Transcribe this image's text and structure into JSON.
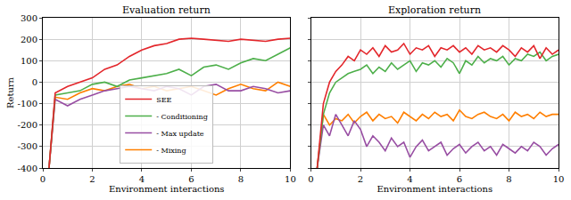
{
  "chart_data": [
    {
      "type": "line",
      "title": "Evaluation return",
      "x_label": "Environment interactions",
      "y_label": "Return",
      "x": [
        0.25,
        0.5,
        1,
        1.5,
        2,
        2.5,
        3,
        3.5,
        4,
        4.5,
        5,
        5.5,
        6,
        6.5,
        7,
        7.5,
        8,
        8.5,
        9,
        9.5,
        10
      ],
      "series": [
        {
          "name": "SEE",
          "color": "#e3262b",
          "values": [
            -400,
            -50,
            -20,
            0,
            20,
            60,
            80,
            120,
            150,
            170,
            180,
            200,
            205,
            200,
            195,
            190,
            200,
            195,
            190,
            200,
            205
          ]
        },
        {
          "name": "- Conditioning",
          "color": "#4daf4a",
          "values": [
            -400,
            -60,
            -50,
            -40,
            -10,
            0,
            -20,
            10,
            20,
            30,
            40,
            60,
            30,
            70,
            80,
            60,
            90,
            110,
            100,
            130,
            160
          ]
        },
        {
          "name": "- Max update",
          "color": "#984ea3",
          "values": [
            -400,
            -80,
            -110,
            -80,
            -60,
            -40,
            -30,
            -20,
            -30,
            -40,
            -20,
            -30,
            -60,
            -20,
            -10,
            -40,
            -40,
            -20,
            -30,
            -50,
            -40
          ]
        },
        {
          "name": "- Mixing",
          "color": "#ff7f00",
          "values": [
            -400,
            -70,
            -80,
            -50,
            -30,
            -40,
            -20,
            -10,
            -30,
            -20,
            -40,
            -30,
            -20,
            -40,
            -60,
            -30,
            -10,
            -30,
            -40,
            0,
            -20
          ]
        }
      ],
      "xlim": [
        0,
        10
      ],
      "xticks": [
        0,
        2,
        4,
        6,
        8,
        10
      ],
      "ylim": [
        -400,
        300
      ],
      "yticks": [
        -400,
        -300,
        -200,
        -100,
        0,
        100,
        200,
        300
      ],
      "grid": true,
      "legend": "lower center"
    },
    {
      "type": "line",
      "title": "Exploration return",
      "x_label": "Environment interactions",
      "x": [
        0.25,
        0.5,
        0.75,
        1,
        1.25,
        1.5,
        1.75,
        2,
        2.25,
        2.5,
        2.75,
        3,
        3.25,
        3.5,
        3.75,
        4,
        4.25,
        4.5,
        4.75,
        5,
        5.25,
        5.5,
        5.75,
        6,
        6.25,
        6.5,
        6.75,
        7,
        7.25,
        7.5,
        7.75,
        8,
        8.25,
        8.5,
        8.75,
        9,
        9.25,
        9.5,
        9.75,
        10
      ],
      "series": [
        {
          "name": "SEE",
          "color": "#e3262b",
          "values": [
            -400,
            -100,
            0,
            50,
            80,
            120,
            100,
            150,
            130,
            160,
            120,
            170,
            140,
            150,
            180,
            130,
            160,
            150,
            170,
            120,
            160,
            150,
            170,
            140,
            160,
            130,
            170,
            150,
            160,
            140,
            170,
            150,
            120,
            160,
            140,
            170,
            110,
            160,
            130,
            150
          ]
        },
        {
          "name": "- Conditioning",
          "color": "#4daf4a",
          "values": [
            -400,
            -150,
            -50,
            0,
            20,
            40,
            50,
            60,
            80,
            40,
            70,
            50,
            90,
            60,
            80,
            100,
            50,
            90,
            80,
            100,
            70,
            110,
            90,
            40,
            100,
            80,
            120,
            90,
            110,
            100,
            120,
            80,
            110,
            100,
            130,
            120,
            140,
            100,
            120,
            130
          ]
        },
        {
          "name": "- Max update",
          "color": "#984ea3",
          "values": [
            -400,
            -200,
            -250,
            -150,
            -200,
            -250,
            -180,
            -220,
            -300,
            -250,
            -280,
            -320,
            -260,
            -300,
            -280,
            -350,
            -300,
            -270,
            -320,
            -300,
            -280,
            -340,
            -310,
            -290,
            -330,
            -300,
            -280,
            -320,
            -300,
            -340,
            -290,
            -310,
            -330,
            -300,
            -320,
            -280,
            -300,
            -340,
            -310,
            -290
          ]
        },
        {
          "name": "- Mixing",
          "color": "#ff7f00",
          "values": [
            -400,
            -150,
            -200,
            -170,
            -180,
            -150,
            -190,
            -160,
            -140,
            -180,
            -150,
            -170,
            -160,
            -190,
            -140,
            -160,
            -180,
            -150,
            -170,
            -140,
            -160,
            -150,
            -180,
            -130,
            -160,
            -170,
            -150,
            -140,
            -160,
            -170,
            -150,
            -180,
            -140,
            -160,
            -150,
            -170,
            -140,
            -160,
            -150,
            -150
          ]
        }
      ],
      "xlim": [
        0,
        10
      ],
      "xticks": [
        0,
        2,
        4,
        6,
        8,
        10
      ],
      "ylim": [
        -400,
        300
      ],
      "yticks": [
        -400,
        -300,
        -200,
        -100,
        0,
        100,
        200,
        300
      ],
      "grid": true,
      "tick_labels": "x"
    }
  ]
}
